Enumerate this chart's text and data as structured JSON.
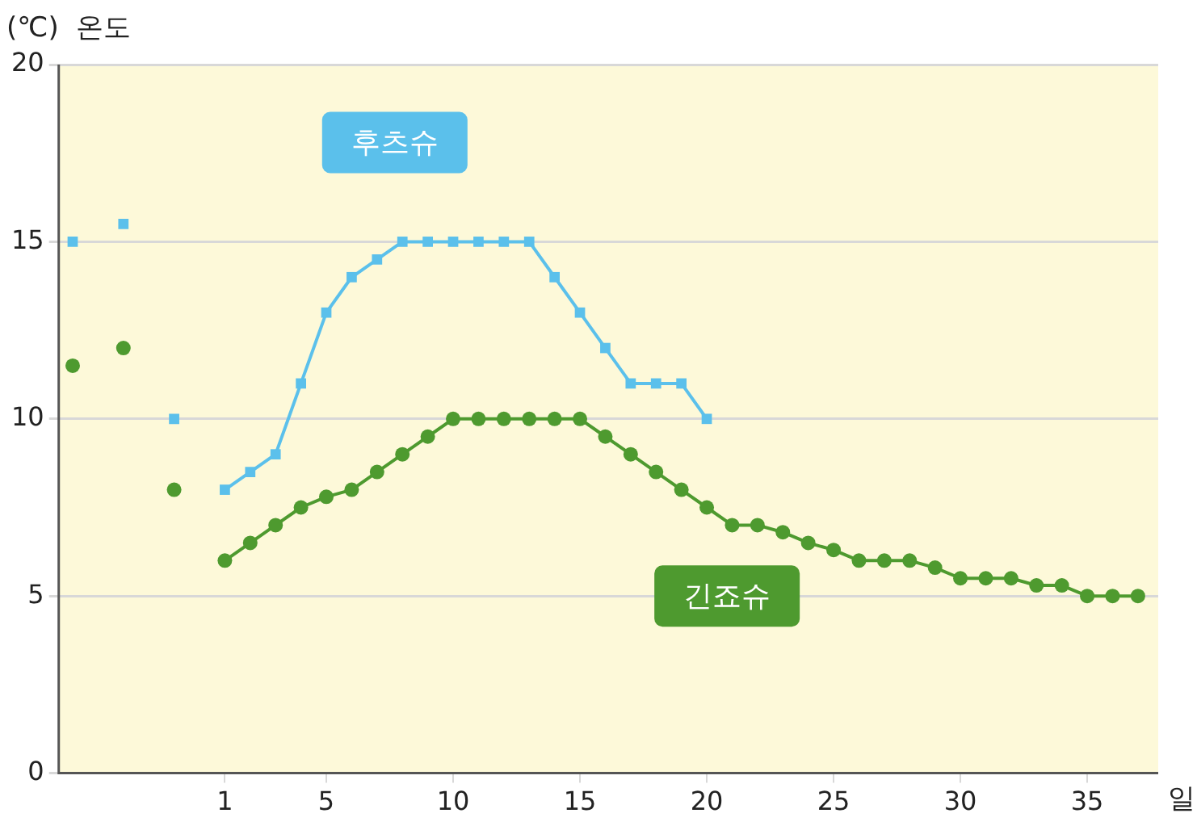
{
  "chart_data": {
    "type": "line",
    "ylabel": "(℃)  온도",
    "xlabel": "일",
    "xlim": [
      -5.55,
      37.8
    ],
    "xticks": [
      1,
      5,
      10,
      15,
      20,
      25,
      30,
      35
    ],
    "ylim": [
      0,
      20
    ],
    "yticks": [
      0,
      5,
      10,
      15,
      20
    ],
    "grid": "y",
    "legend": false,
    "series": [
      {
        "name": "후츠슈",
        "color": "#5bc0eb",
        "marker": "square",
        "x": [
          -5,
          -4,
          -3,
          -2,
          -1,
          0,
          1,
          2,
          3,
          4,
          5,
          6,
          7,
          8,
          9,
          10,
          11,
          12,
          13,
          14,
          15,
          16,
          17,
          18,
          19,
          20
        ],
        "values": [
          15,
          null,
          15.5,
          null,
          10,
          null,
          8,
          8.5,
          9,
          11,
          13,
          14,
          14.5,
          15,
          15,
          15,
          15,
          15,
          15,
          14,
          13,
          12,
          11,
          11,
          11,
          10
        ]
      },
      {
        "name": "긴죠슈",
        "color": "#4e9a2f",
        "marker": "circle",
        "x": [
          -5,
          -4,
          -3,
          -2,
          -1,
          0,
          1,
          2,
          3,
          4,
          5,
          6,
          7,
          8,
          9,
          10,
          11,
          12,
          13,
          14,
          15,
          16,
          17,
          18,
          19,
          20,
          21,
          22,
          23,
          24,
          25,
          26,
          27,
          28,
          29,
          30,
          31,
          32,
          33,
          34,
          35,
          36,
          37
        ],
        "values": [
          11.5,
          null,
          12,
          null,
          8,
          null,
          6,
          6.5,
          7,
          7.5,
          7.8,
          8,
          8.5,
          9,
          9.5,
          10,
          10,
          10,
          10,
          10,
          10,
          9.5,
          9,
          8.5,
          8,
          7.5,
          7,
          7,
          6.8,
          6.5,
          6.3,
          6,
          6,
          6,
          5.8,
          5.5,
          5.5,
          5.5,
          5.3,
          5.3,
          5,
          5,
          5
        ]
      }
    ]
  }
}
